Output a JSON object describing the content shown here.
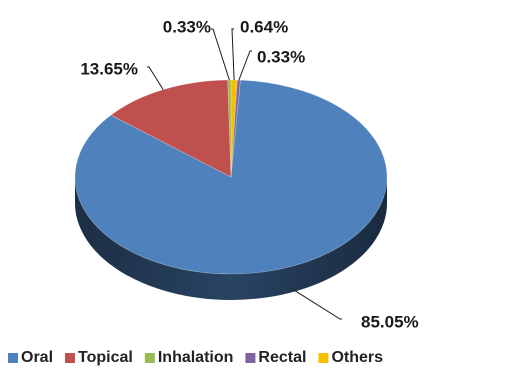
{
  "chart_data": {
    "type": "pie",
    "title": "",
    "categories": [
      "Oral",
      "Topical",
      "Inhalation",
      "Rectal",
      "Others"
    ],
    "values": [
      85.05,
      13.65,
      0.33,
      0.33,
      0.64
    ],
    "labels": [
      "85.05%",
      "13.65%",
      "0.33%",
      "0.33%",
      "0.64%"
    ],
    "colors": [
      "#4f81bd",
      "#c0504d",
      "#9bbb59",
      "#8064a2",
      "#f5c000"
    ],
    "style": "3d",
    "legend_position": "bottom"
  }
}
